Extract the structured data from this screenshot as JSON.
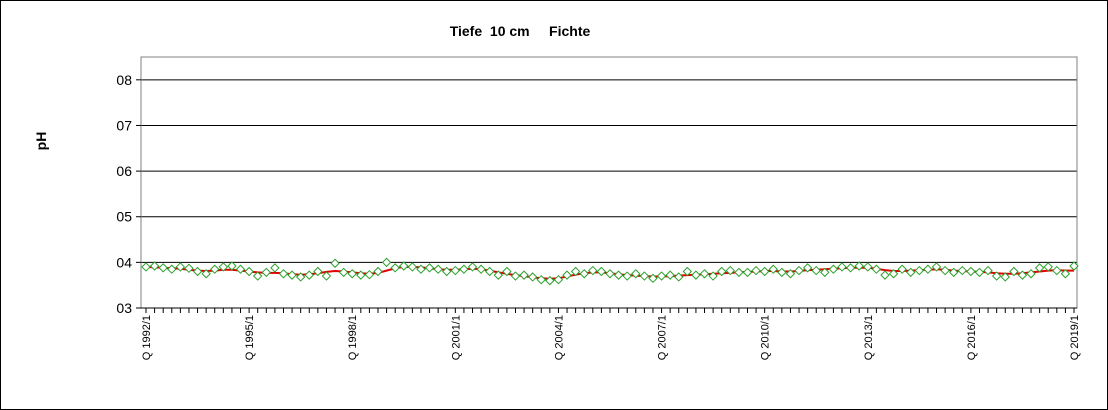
{
  "chart_data": {
    "type": "line",
    "title": "Tiefe  10 cm     Fichte",
    "ylabel": "pH",
    "xlabel": "",
    "ylim": [
      3,
      8.5
    ],
    "yticks": [
      {
        "value": 3,
        "label": "03"
      },
      {
        "value": 4,
        "label": "04"
      },
      {
        "value": 5,
        "label": "05"
      },
      {
        "value": 6,
        "label": "06"
      },
      {
        "value": 7,
        "label": "07"
      },
      {
        "value": 8,
        "label": "08"
      }
    ],
    "grid": true,
    "x_start": "Q 1992/1",
    "x_end": "Q 2019/4",
    "xtick_labels": [
      {
        "index": 0,
        "label": "Q 1992/1"
      },
      {
        "index": 12,
        "label": "Q 1995/1"
      },
      {
        "index": 24,
        "label": "Q 1998/1"
      },
      {
        "index": 36,
        "label": "Q 2001/1"
      },
      {
        "index": 48,
        "label": "Q 2004/1"
      },
      {
        "index": 60,
        "label": "Q 2007/1"
      },
      {
        "index": 72,
        "label": "Q 2010/1"
      },
      {
        "index": 84,
        "label": "Q 2013/1"
      },
      {
        "index": 96,
        "label": "Q 2016/1"
      },
      {
        "index": 108,
        "label": "Q 2019/1"
      }
    ],
    "series": [
      {
        "marker": "diamond",
        "color": "#2ca02c",
        "values": [
          3.9,
          3.92,
          3.88,
          3.85,
          3.9,
          3.87,
          3.8,
          3.75,
          3.85,
          3.9,
          3.92,
          3.85,
          3.8,
          3.7,
          3.78,
          3.88,
          3.75,
          3.72,
          3.68,
          3.72,
          3.8,
          3.7,
          3.98,
          3.78,
          3.75,
          3.72,
          3.73,
          3.8,
          4.0,
          3.88,
          3.92,
          3.9,
          3.85,
          3.88,
          3.85,
          3.8,
          3.82,
          3.85,
          3.9,
          3.85,
          3.8,
          3.72,
          3.8,
          3.7,
          3.72,
          3.68,
          3.62,
          3.6,
          3.62,
          3.72,
          3.8,
          3.75,
          3.82,
          3.8,
          3.75,
          3.72,
          3.7,
          3.75,
          3.7,
          3.65,
          3.7,
          3.72,
          3.68,
          3.8,
          3.72,
          3.75,
          3.7,
          3.8,
          3.82,
          3.78,
          3.78,
          3.82,
          3.8,
          3.85,
          3.78,
          3.75,
          3.82,
          3.88,
          3.82,
          3.78,
          3.85,
          3.9,
          3.88,
          3.92,
          3.9,
          3.85,
          3.72,
          3.75,
          3.85,
          3.78,
          3.82,
          3.85,
          3.9,
          3.82,
          3.78,
          3.82,
          3.8,
          3.78,
          3.82,
          3.7,
          3.68,
          3.8,
          3.72,
          3.75,
          3.88,
          3.9,
          3.82,
          3.75,
          3.92
        ]
      },
      {
        "marker": "none",
        "color": "#e00000",
        "values": [
          3.9,
          3.89,
          3.88,
          3.87,
          3.86,
          3.84,
          3.82,
          3.81,
          3.82,
          3.84,
          3.84,
          3.82,
          3.8,
          3.78,
          3.77,
          3.77,
          3.76,
          3.74,
          3.73,
          3.74,
          3.76,
          3.79,
          3.81,
          3.8,
          3.78,
          3.76,
          3.75,
          3.77,
          3.82,
          3.87,
          3.9,
          3.9,
          3.89,
          3.87,
          3.85,
          3.84,
          3.84,
          3.85,
          3.86,
          3.85,
          3.82,
          3.78,
          3.75,
          3.72,
          3.7,
          3.67,
          3.65,
          3.64,
          3.65,
          3.69,
          3.73,
          3.76,
          3.78,
          3.78,
          3.76,
          3.74,
          3.72,
          3.71,
          3.7,
          3.69,
          3.69,
          3.7,
          3.71,
          3.72,
          3.73,
          3.74,
          3.75,
          3.76,
          3.77,
          3.78,
          3.79,
          3.8,
          3.81,
          3.81,
          3.8,
          3.8,
          3.81,
          3.83,
          3.84,
          3.85,
          3.86,
          3.87,
          3.88,
          3.88,
          3.88,
          3.86,
          3.83,
          3.81,
          3.81,
          3.82,
          3.83,
          3.84,
          3.85,
          3.84,
          3.82,
          3.81,
          3.8,
          3.79,
          3.78,
          3.76,
          3.75,
          3.75,
          3.76,
          3.78,
          3.8,
          3.82,
          3.83,
          3.82,
          3.82
        ]
      }
    ]
  }
}
